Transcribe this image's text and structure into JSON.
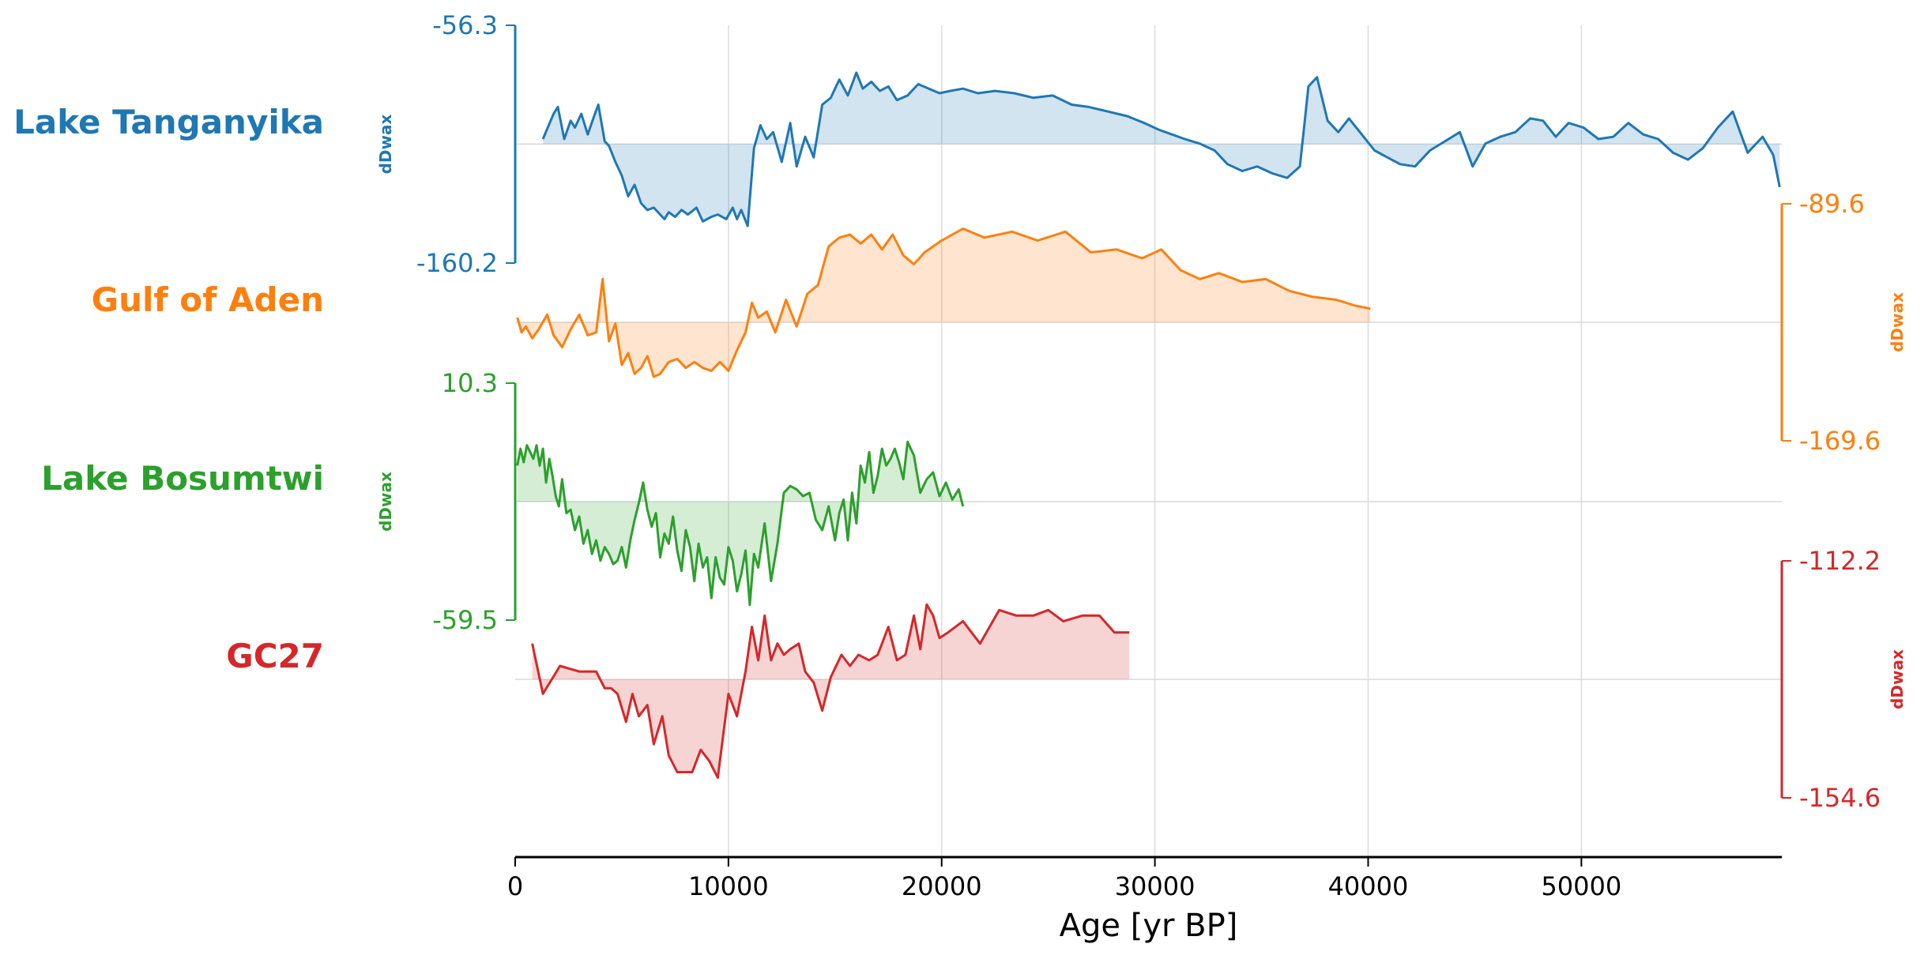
{
  "chart_data": {
    "type": "line",
    "layout": "stacked",
    "xlabel": "Age [yr BP]",
    "xlim": [
      0,
      59400
    ],
    "xticks": [
      0,
      10000,
      20000,
      30000,
      40000,
      50000
    ],
    "xtick_labels": [
      "0",
      "10000",
      "20000",
      "30000",
      "40000",
      "50000"
    ],
    "grid": "vertical",
    "series": [
      {
        "name": "Lake Tanganyika",
        "color": "#1f77b4",
        "ylabel": "dDwax",
        "axis_side": "left",
        "ylim": [
          -160.2,
          -56.3
        ],
        "ytick_labels": [
          "-56.3",
          "-160.2"
        ],
        "baseline": -108.2,
        "x": [
          1300,
          1800,
          2000,
          2300,
          2600,
          2800,
          3100,
          3400,
          3700,
          3900,
          4200,
          4400,
          4700,
          5000,
          5300,
          5600,
          5900,
          6200,
          6500,
          6800,
          7000,
          7200,
          7500,
          7800,
          8100,
          8500,
          8800,
          9200,
          9500,
          9900,
          10200,
          10400,
          10600,
          10900,
          11200,
          11500,
          11800,
          12100,
          12500,
          12900,
          13200,
          13600,
          14000,
          14400,
          14800,
          15200,
          15600,
          16000,
          16300,
          16700,
          17100,
          17500,
          17900,
          18400,
          18900,
          19400,
          19900,
          20400,
          21000,
          21700,
          22500,
          23400,
          24300,
          25200,
          26100,
          26900,
          27800,
          28700,
          29500,
          30200,
          30800,
          31400,
          32100,
          32800,
          33400,
          34100,
          34800,
          35500,
          36200,
          36800,
          37200,
          37600,
          38100,
          38600,
          39100,
          39700,
          40300,
          40900,
          41500,
          42200,
          42900,
          43600,
          44300,
          44900,
          45500,
          46200,
          46900,
          47600,
          48200,
          48800,
          49400,
          50100,
          50800,
          51500,
          52200,
          52900,
          53600,
          54300,
          55000,
          55700,
          56400,
          57100,
          57800,
          58500,
          59000,
          59300
        ],
        "y": [
          -106,
          -95,
          -92,
          -106,
          -98,
          -101,
          -95,
          -104,
          -96,
          -91,
          -107,
          -109,
          -116,
          -122,
          -131,
          -126,
          -134,
          -137,
          -136,
          -139,
          -141,
          -138,
          -140,
          -137,
          -139,
          -136,
          -142,
          -140,
          -139,
          -141,
          -136,
          -141,
          -137,
          -144,
          -110,
          -100,
          -106,
          -103,
          -116,
          -99,
          -118,
          -105,
          -114,
          -91,
          -88,
          -80,
          -87,
          -77,
          -84,
          -81,
          -85,
          -83,
          -89,
          -87,
          -82,
          -84,
          -86,
          -85,
          -84,
          -86,
          -85,
          -86,
          -88,
          -87,
          -91,
          -92,
          -94,
          -96,
          -99,
          -102,
          -104,
          -106,
          -108,
          -111,
          -117,
          -120,
          -118,
          -121,
          -123,
          -118,
          -83,
          -79,
          -98,
          -103,
          -97,
          -104,
          -111,
          -114,
          -117,
          -118,
          -111,
          -107,
          -103,
          -118,
          -108,
          -105,
          -103,
          -97,
          -98,
          -105,
          -99,
          -101,
          -106,
          -105,
          -99,
          -104,
          -106,
          -112,
          -115,
          -110,
          -101,
          -94,
          -112,
          -105,
          -113,
          -127
        ]
      },
      {
        "name": "Gulf of Aden",
        "color": "#ff7f0e",
        "ylabel": "dDwax",
        "axis_side": "right",
        "ylim": [
          -169.6,
          -89.6
        ],
        "ytick_labels": [
          "-89.6",
          "-169.6"
        ],
        "baseline": -129.6,
        "x": [
          100,
          300,
          500,
          800,
          1100,
          1500,
          1800,
          2200,
          2600,
          3000,
          3400,
          3800,
          4100,
          4400,
          4700,
          5000,
          5300,
          5600,
          5900,
          6200,
          6500,
          6800,
          7200,
          7600,
          8000,
          8400,
          8800,
          9200,
          9600,
          10000,
          10400,
          10800,
          11100,
          11400,
          11800,
          12200,
          12700,
          13200,
          13700,
          14200,
          14700,
          15200,
          15700,
          16200,
          16700,
          17200,
          17700,
          18200,
          18700,
          19200,
          20000,
          21000,
          22000,
          23300,
          24500,
          25800,
          27000,
          28200,
          29400,
          30300,
          31200,
          32100,
          33000,
          34100,
          35200,
          36300,
          37400,
          38500,
          39400,
          40100
        ],
        "y": [
          -128,
          -133,
          -131,
          -135,
          -132,
          -127,
          -134,
          -138,
          -132,
          -127,
          -134,
          -133,
          -115,
          -136,
          -130,
          -144,
          -140,
          -147,
          -145,
          -141,
          -148,
          -147,
          -143,
          -142,
          -145,
          -143,
          -145,
          -146,
          -143,
          -146,
          -139,
          -133,
          -123,
          -128,
          -126,
          -133,
          -122,
          -131,
          -120,
          -117,
          -104,
          -101,
          -100,
          -103,
          -100,
          -105,
          -100,
          -107,
          -110,
          -106,
          -102,
          -98,
          -101,
          -99,
          -102,
          -99,
          -106,
          -105,
          -108,
          -105,
          -112,
          -115,
          -113,
          -116,
          -115,
          -119,
          -121,
          -122,
          -124,
          -125
        ]
      },
      {
        "name": "Lake Bosumtwi",
        "color": "#2ca02c",
        "ylabel": "dDwax",
        "axis_side": "left",
        "ylim": [
          -59.5,
          10.3
        ],
        "ytick_labels": [
          "10.3",
          "-59.5"
        ],
        "baseline": -24.6,
        "x": [
          100,
          250,
          400,
          550,
          700,
          850,
          1000,
          1150,
          1300,
          1450,
          1600,
          1750,
          1900,
          2050,
          2200,
          2400,
          2600,
          2800,
          3000,
          3200,
          3400,
          3600,
          3800,
          4000,
          4200,
          4400,
          4600,
          4800,
          5000,
          5200,
          5400,
          5600,
          5800,
          6000,
          6200,
          6400,
          6600,
          6800,
          7000,
          7200,
          7400,
          7600,
          7800,
          8000,
          8200,
          8400,
          8600,
          8800,
          9000,
          9200,
          9400,
          9600,
          9800,
          10000,
          10200,
          10400,
          10600,
          10800,
          11000,
          11200,
          11400,
          11700,
          12000,
          12300,
          12600,
          12900,
          13200,
          13500,
          13800,
          14100,
          14400,
          14700,
          15000,
          15200,
          15400,
          15600,
          15800,
          16000,
          16200,
          16400,
          16600,
          16800,
          17000,
          17200,
          17400,
          17600,
          17800,
          18000,
          18200,
          18400,
          18700,
          19000,
          19300,
          19600,
          19900,
          20200,
          20500,
          20800,
          21000
        ],
        "y": [
          -14,
          -9,
          -13,
          -8,
          -10,
          -12,
          -8,
          -14,
          -9,
          -19,
          -12,
          -17,
          -23,
          -26,
          -18,
          -28,
          -27,
          -33,
          -29,
          -37,
          -33,
          -40,
          -36,
          -42,
          -38,
          -40,
          -43,
          -42,
          -38,
          -44,
          -36,
          -30,
          -25,
          -19,
          -27,
          -32,
          -28,
          -41,
          -34,
          -37,
          -29,
          -39,
          -45,
          -33,
          -38,
          -48,
          -37,
          -44,
          -41,
          -53,
          -41,
          -47,
          -49,
          -38,
          -42,
          -51,
          -46,
          -39,
          -55,
          -40,
          -44,
          -31,
          -48,
          -37,
          -22,
          -20,
          -21,
          -23,
          -22,
          -30,
          -33,
          -26,
          -36,
          -28,
          -24,
          -36,
          -22,
          -31,
          -14,
          -19,
          -10,
          -22,
          -17,
          -9,
          -14,
          -12,
          -9,
          -13,
          -18,
          -7,
          -11,
          -22,
          -18,
          -16,
          -23,
          -19,
          -24,
          -21,
          -26
        ]
      },
      {
        "name": "GC27",
        "color": "#d62728",
        "ylabel": "dDwax",
        "axis_side": "right",
        "ylim": [
          -154.6,
          -112.2
        ],
        "ytick_labels": [
          "-112.2",
          "-154.6"
        ],
        "baseline": -133.4,
        "x": [
          800,
          1300,
          2100,
          3000,
          3800,
          4200,
          4500,
          4800,
          5200,
          5500,
          5800,
          6200,
          6500,
          6900,
          7200,
          7600,
          8300,
          8700,
          9100,
          9500,
          10000,
          10400,
          10800,
          11100,
          11400,
          11700,
          12000,
          12300,
          12600,
          12900,
          13300,
          13600,
          14000,
          14400,
          14800,
          15300,
          15700,
          16100,
          16600,
          17000,
          17500,
          17900,
          18300,
          18700,
          19000,
          19300,
          19600,
          19900,
          20300,
          21000,
          21800,
          22700,
          23500,
          24300,
          25000,
          25700,
          26600,
          27400,
          28100,
          28800
        ],
        "y": [
          -127,
          -136,
          -131,
          -132,
          -132,
          -135,
          -135,
          -136,
          -141,
          -136,
          -140,
          -138,
          -145,
          -140,
          -147,
          -150,
          -150,
          -146,
          -148,
          -151,
          -136,
          -140,
          -132,
          -124,
          -130,
          -122,
          -130,
          -127,
          -129,
          -128,
          -127,
          -132,
          -134,
          -139,
          -133,
          -129,
          -131,
          -129,
          -130,
          -129,
          -124,
          -130,
          -129,
          -122,
          -128,
          -120,
          -122,
          -126,
          -125,
          -123,
          -127,
          -121,
          -122,
          -122,
          -121,
          -123,
          -122,
          -122,
          -125,
          -125
        ]
      }
    ]
  }
}
